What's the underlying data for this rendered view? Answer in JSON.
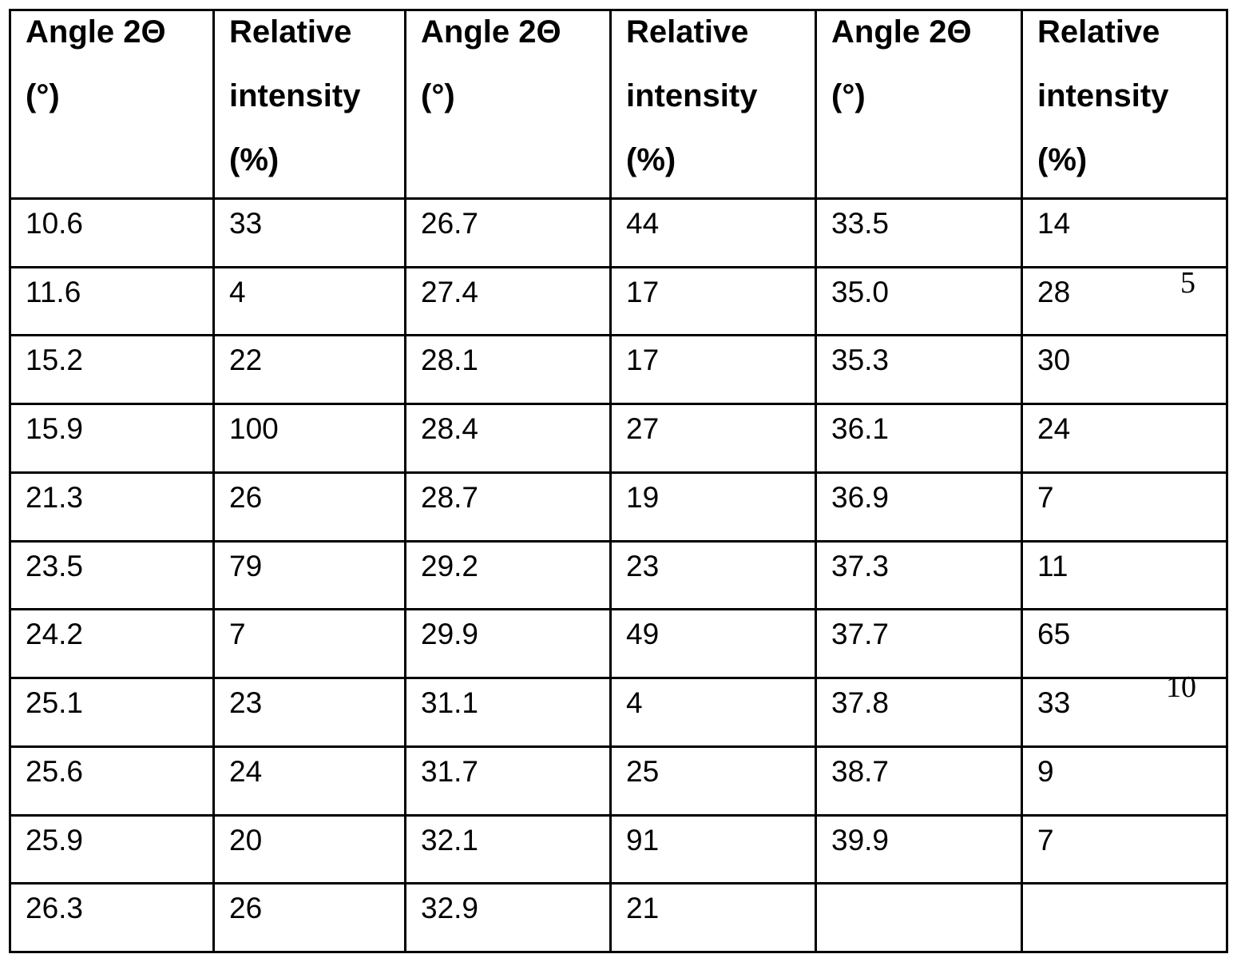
{
  "table": {
    "header": [
      [
        "Angle 2Θ",
        "(°)"
      ],
      [
        "Relative",
        "intensity",
        "(%)"
      ],
      [
        "Angle 2Θ",
        "(°)"
      ],
      [
        "Relative",
        "intensity",
        "(%)"
      ],
      [
        "Angle 2Θ",
        "(°)"
      ],
      [
        "Relative",
        "intensity",
        "(%)"
      ]
    ],
    "rows": [
      [
        "10.6",
        "33",
        "26.7",
        "44",
        "33.5",
        "14"
      ],
      [
        "11.6",
        "4",
        "27.4",
        "17",
        "35.0",
        "28"
      ],
      [
        "15.2",
        "22",
        "28.1",
        "17",
        "35.3",
        "30"
      ],
      [
        "15.9",
        "100",
        "28.4",
        "27",
        "36.1",
        "24"
      ],
      [
        "21.3",
        "26",
        "28.7",
        "19",
        "36.9",
        "7"
      ],
      [
        "23.5",
        "79",
        "29.2",
        "23",
        "37.3",
        "11"
      ],
      [
        "24.2",
        "7",
        "29.9",
        "49",
        "37.7",
        "65"
      ],
      [
        "25.1",
        "23",
        "31.1",
        "4",
        "37.8",
        "33"
      ],
      [
        "25.6",
        "24",
        "31.7",
        "25",
        "38.7",
        "9"
      ],
      [
        "25.9",
        "20",
        "32.1",
        "91",
        "39.9",
        "7"
      ],
      [
        "26.3",
        "26",
        "32.9",
        "21",
        null,
        null
      ]
    ]
  },
  "line_numbers": [
    "5",
    "10"
  ]
}
